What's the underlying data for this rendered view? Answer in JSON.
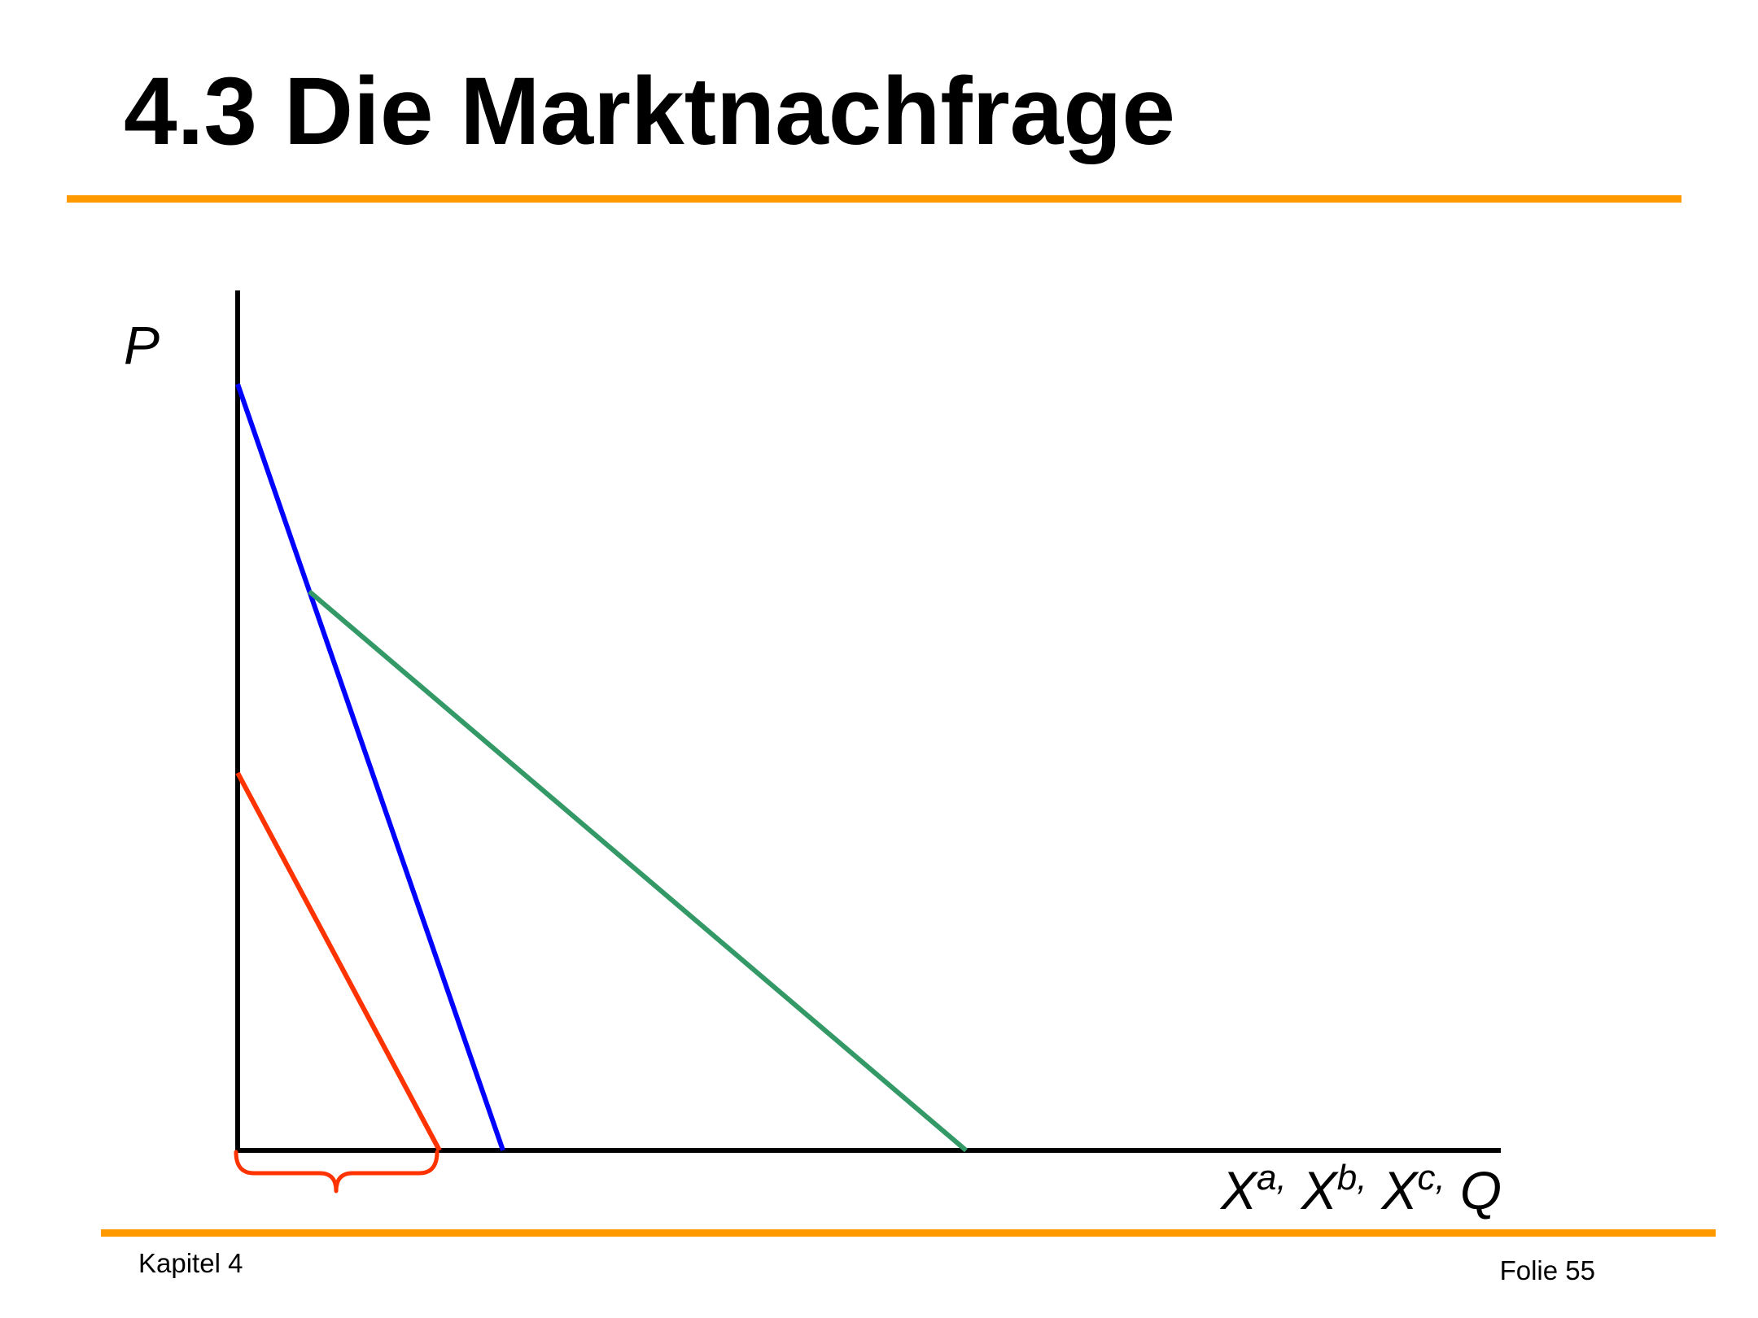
{
  "slide": {
    "title": "4.3 Die Marktnachfrage",
    "footer_left": "Kapitel 4",
    "footer_right": "Folie 55",
    "accent_color": "#FF9900"
  },
  "diagram": {
    "y_axis_label": "P",
    "x_axis_label": "Q",
    "x_labels": [
      {
        "base": "X",
        "sup": "a,"
      },
      {
        "base": "X",
        "sup": "b,"
      },
      {
        "base": "X",
        "sup": "c,"
      }
    ],
    "line_colors": {
      "red": "#FF3300",
      "blue": "#0000FF",
      "green": "#339966",
      "axes": "#000000",
      "brace": "#FF3300"
    }
  }
}
